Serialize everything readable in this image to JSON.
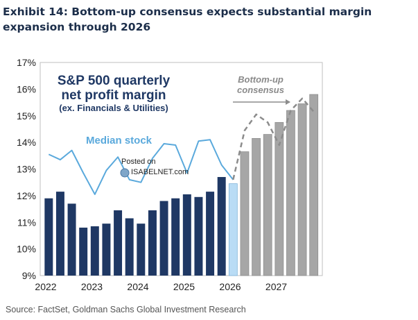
{
  "header": {
    "title": "Exhibit 14: Bottom-up consensus expects substantial margin expansion through 2026"
  },
  "footer": {
    "source": "Source: FactSet, Goldman Sachs Global Investment Research"
  },
  "watermark": {
    "line1": "Posted on",
    "line2": "ISABELNET.com"
  },
  "colors": {
    "historical_bar": "#1f3864",
    "current_bar": "#b9dcf5",
    "estimate_bar": "#a6a6a6",
    "median_line": "#5aa9dc",
    "consensus_line": "#8c8c8c",
    "arrow": "#8c8c8c"
  },
  "chart_data": {
    "type": "bar",
    "title": "S&P 500 quarterly net profit margin",
    "title_lines": [
      "S&P 500 quarterly",
      "net profit margin"
    ],
    "subtitle": "(ex. Financials & Utilities)",
    "ylim": [
      9,
      17
    ],
    "yticks": [
      "9%",
      "10%",
      "11%",
      "12%",
      "13%",
      "14%",
      "15%",
      "16%",
      "17%"
    ],
    "ytick_values": [
      9,
      10,
      11,
      12,
      13,
      14,
      15,
      16,
      17
    ],
    "xticks": [
      "2022",
      "2023",
      "2024",
      "2025",
      "2026",
      "2027"
    ],
    "xtick_positions": [
      0,
      4,
      8,
      12,
      16,
      20
    ],
    "series": [
      {
        "name": "S&P 500 quarterly net profit margin",
        "kind": "bar",
        "values": [
          11.9,
          12.15,
          11.7,
          10.8,
          10.85,
          10.95,
          11.45,
          11.15,
          10.95,
          11.45,
          11.8,
          11.9,
          12.05,
          11.95,
          12.15,
          12.7,
          12.45,
          13.65,
          14.15,
          14.3,
          14.75,
          15.2,
          15.45,
          15.8
        ],
        "segments": [
          "historical",
          "historical",
          "historical",
          "historical",
          "historical",
          "historical",
          "historical",
          "historical",
          "historical",
          "historical",
          "historical",
          "historical",
          "historical",
          "historical",
          "historical",
          "historical",
          "current",
          "estimate",
          "estimate",
          "estimate",
          "estimate",
          "estimate",
          "estimate",
          "estimate"
        ]
      },
      {
        "name": "Median stock",
        "kind": "line",
        "values": [
          13.55,
          13.35,
          13.7,
          12.85,
          12.05,
          12.95,
          13.45,
          12.6,
          12.5,
          13.4,
          13.95,
          13.9,
          12.85,
          14.05,
          14.1,
          13.15,
          12.6
        ]
      },
      {
        "name": "Bottom-up consensus",
        "kind": "dashed-line",
        "start_index": 16,
        "values": [
          12.6,
          14.45,
          15.05,
          14.75,
          13.9,
          15.2,
          15.65,
          15.15
        ]
      }
    ],
    "annotations": {
      "median_label": "Median stock",
      "consensus_label": [
        "Bottom-up",
        "consensus"
      ]
    }
  }
}
